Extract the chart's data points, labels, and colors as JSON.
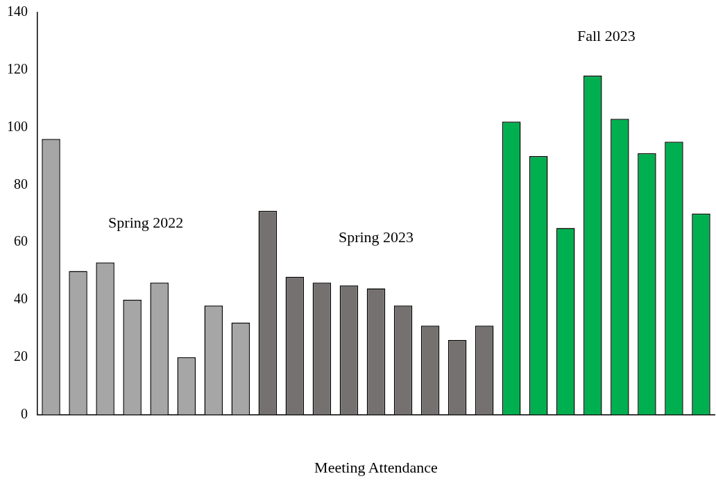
{
  "chart_data": {
    "type": "bar",
    "xlabel": "Meeting Attendance",
    "categories": [
      null,
      null,
      null,
      null,
      null,
      null,
      null,
      null,
      null,
      null,
      null,
      null,
      null,
      null,
      null,
      null,
      null,
      null,
      null,
      null,
      null,
      null,
      null,
      null,
      null
    ],
    "series": [
      {
        "name": "Spring 2022",
        "color": "#a6a6a6",
        "values": [
          96,
          50,
          53,
          40,
          46,
          20,
          38,
          32,
          null,
          null,
          null,
          null,
          null,
          null,
          null,
          null,
          null,
          null,
          null,
          null,
          null,
          null,
          null,
          null,
          null
        ]
      },
      {
        "name": "Spring 2023",
        "color": "#767171",
        "values": [
          null,
          null,
          null,
          null,
          null,
          null,
          null,
          null,
          71,
          48,
          46,
          45,
          44,
          38,
          31,
          26,
          31,
          null,
          null,
          null,
          null,
          null,
          null,
          null,
          null
        ]
      },
      {
        "name": "Fall 2023",
        "color": "#00b050",
        "values": [
          null,
          null,
          null,
          null,
          null,
          null,
          null,
          null,
          null,
          null,
          null,
          null,
          null,
          null,
          null,
          null,
          null,
          102,
          90,
          65,
          118,
          103,
          91,
          95,
          70
        ]
      }
    ],
    "ylim": [
      0,
      140
    ],
    "yticks": [
      0,
      20,
      40,
      60,
      80,
      100,
      120,
      140
    ],
    "grid": false,
    "legend": false
  }
}
